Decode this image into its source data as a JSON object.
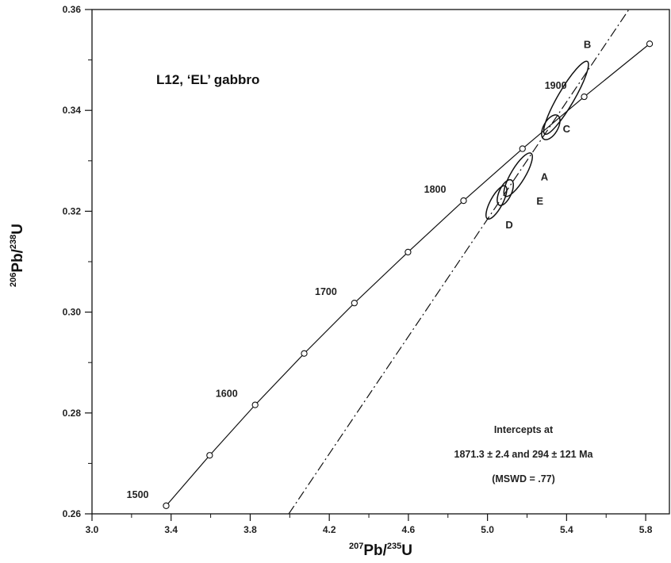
{
  "chart_data": {
    "type": "concordia",
    "title": "L12, ‘EL’ gabbro",
    "xlabel": {
      "mass_a": "207",
      "element_a": "Pb/",
      "mass_b": "235",
      "element_b": "U"
    },
    "ylabel": {
      "mass_a": "206",
      "element_a": "Pb/",
      "mass_b": "238",
      "element_b": "U"
    },
    "xlim": [
      3.0,
      5.92
    ],
    "ylim": [
      0.26,
      0.36
    ],
    "x_ticks": [
      "3.0",
      "3.4",
      "3.8",
      "4.2",
      "4.6",
      "5.0",
      "5.4",
      "5.8"
    ],
    "y_ticks": [
      "0.26",
      "0.28",
      "0.30",
      "0.32",
      "0.34",
      "0.36"
    ],
    "concordia_points": [
      {
        "x": 3.375,
        "y": 0.2616
      },
      {
        "x": 3.595,
        "y": 0.2716
      },
      {
        "x": 3.825,
        "y": 0.2816
      },
      {
        "x": 4.073,
        "y": 0.2918
      },
      {
        "x": 4.327,
        "y": 0.3018
      },
      {
        "x": 4.598,
        "y": 0.3119
      },
      {
        "x": 4.879,
        "y": 0.3221
      },
      {
        "x": 5.177,
        "y": 0.3324
      },
      {
        "x": 5.489,
        "y": 0.3427
      },
      {
        "x": 5.82,
        "y": 0.3532
      }
    ],
    "age_labels": [
      {
        "text": "1500",
        "x": 3.375,
        "y": 0.2616
      },
      {
        "text": "1600",
        "x": 3.825,
        "y": 0.2816
      },
      {
        "text": "1700",
        "x": 4.327,
        "y": 0.3018
      },
      {
        "text": "1800",
        "x": 4.879,
        "y": 0.3221
      },
      {
        "text": "1900",
        "x": 5.489,
        "y": 0.3427
      }
    ],
    "discordia": {
      "x1": 3.995,
      "y1": 0.26,
      "x2": 5.715,
      "y2": 0.36
    },
    "ellipses": [
      {
        "label": "B",
        "x1": 5.29,
        "y1": 0.3353,
        "x2": 5.505,
        "y2": 0.3497,
        "width": 0.0016
      },
      {
        "label": "C",
        "x1": 5.285,
        "y1": 0.3343,
        "x2": 5.355,
        "y2": 0.339,
        "width": 0.0014
      },
      {
        "label": "A",
        "x1": 5.09,
        "y1": 0.323,
        "x2": 5.22,
        "y2": 0.3315,
        "width": 0.0014
      },
      {
        "label": "E",
        "x1": 5.06,
        "y1": 0.3212,
        "x2": 5.12,
        "y2": 0.3262,
        "width": 0.0012
      },
      {
        "label": "D",
        "x1": 5.0,
        "y1": 0.3185,
        "x2": 5.09,
        "y2": 0.325,
        "width": 0.0012
      }
    ],
    "ellipse_labels": [
      {
        "text": "B",
        "x": 5.505,
        "y": 0.3524
      },
      {
        "text": "C",
        "x": 5.4,
        "y": 0.3356
      },
      {
        "text": "A",
        "x": 5.288,
        "y": 0.3261
      },
      {
        "text": "E",
        "x": 5.265,
        "y": 0.3213
      },
      {
        "text": "D",
        "x": 5.11,
        "y": 0.3166
      }
    ],
    "annotation": [
      "Intercepts at",
      "1871.3 ± 2.4 and 294 ± 121 Ma",
      "(MSWD = .77)"
    ],
    "grid": false
  }
}
